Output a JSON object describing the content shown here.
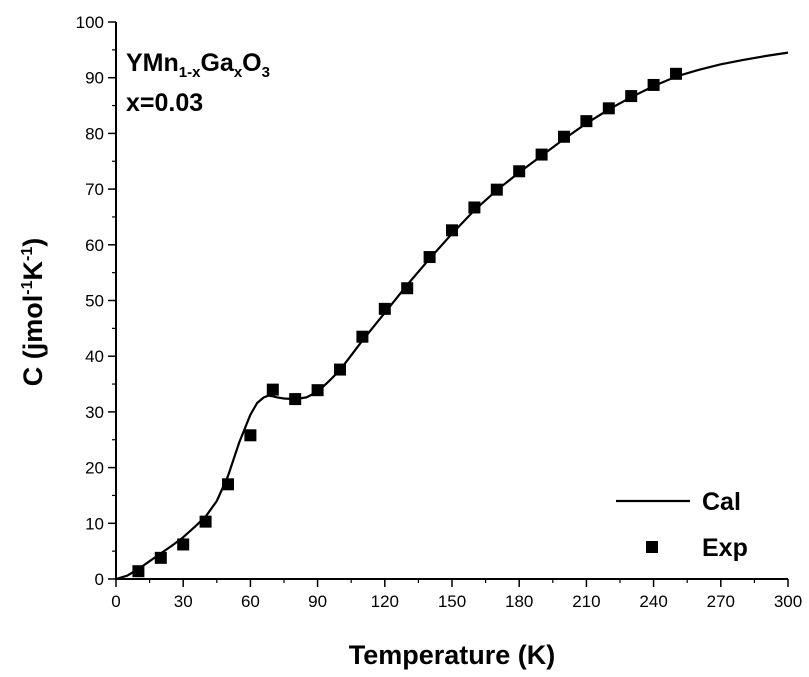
{
  "chart_data": {
    "type": "scatter",
    "xlabel": "Temperature (K)",
    "ylabel": "C (jmol-1K-1)",
    "ylabel_parts": [
      {
        "text": "C (jmol",
        "sup": false
      },
      {
        "text": "-1",
        "sup": true
      },
      {
        "text": "K",
        "sup": false
      },
      {
        "text": "-1",
        "sup": true
      },
      {
        "text": ")",
        "sup": false
      }
    ],
    "xlim": [
      0,
      300
    ],
    "ylim": [
      0,
      100
    ],
    "xticks": [
      0,
      30,
      60,
      90,
      120,
      150,
      180,
      210,
      240,
      270,
      300
    ],
    "yticks": [
      0,
      10,
      20,
      30,
      40,
      50,
      60,
      70,
      80,
      90,
      100
    ],
    "grid": false,
    "legend_position": "bottom-right",
    "annotation": {
      "formula_parts": [
        {
          "text": "YMn",
          "sub": false
        },
        {
          "text": "1-x",
          "sub": true
        },
        {
          "text": "Ga",
          "sub": false
        },
        {
          "text": "x",
          "sub": true
        },
        {
          "text": "O",
          "sub": false
        },
        {
          "text": "3",
          "sub": true
        }
      ],
      "composition": "x=0.03"
    },
    "series": [
      {
        "name": "Cal",
        "style": "line",
        "color": "#000000",
        "x": [
          0,
          5,
          10,
          15,
          20,
          25,
          30,
          35,
          40,
          45,
          50,
          55,
          60,
          63,
          66,
          68,
          70,
          72,
          75,
          80,
          85,
          90,
          95,
          100,
          110,
          120,
          130,
          140,
          150,
          160,
          170,
          180,
          190,
          200,
          210,
          220,
          230,
          240,
          250,
          260,
          270,
          280,
          290,
          300
        ],
        "y": [
          0.0,
          0.6,
          1.8,
          3.2,
          4.6,
          6.0,
          7.5,
          9.3,
          11.2,
          14.0,
          18.5,
          24.5,
          29.5,
          31.6,
          32.6,
          32.9,
          32.8,
          32.6,
          32.4,
          32.3,
          32.6,
          33.6,
          35.5,
          37.5,
          42.8,
          47.8,
          52.8,
          57.5,
          62.0,
          66.2,
          69.8,
          73.0,
          76.0,
          79.0,
          81.8,
          84.3,
          86.5,
          88.5,
          90.2,
          91.4,
          92.4,
          93.2,
          93.9,
          94.5
        ]
      },
      {
        "name": "Exp",
        "style": "marker",
        "marker": "square",
        "color": "#000000",
        "x": [
          10,
          20,
          30,
          40,
          50,
          60,
          70,
          80,
          90,
          100,
          110,
          120,
          130,
          140,
          150,
          160,
          170,
          180,
          190,
          200,
          210,
          220,
          230,
          240,
          250
        ],
        "y": [
          1.4,
          3.8,
          6.2,
          10.3,
          17.0,
          25.8,
          34.0,
          32.3,
          33.9,
          37.6,
          43.5,
          48.5,
          52.2,
          57.8,
          62.6,
          66.7,
          69.9,
          73.2,
          76.2,
          79.4,
          82.2,
          84.5,
          86.7,
          88.7,
          90.7
        ]
      }
    ]
  }
}
